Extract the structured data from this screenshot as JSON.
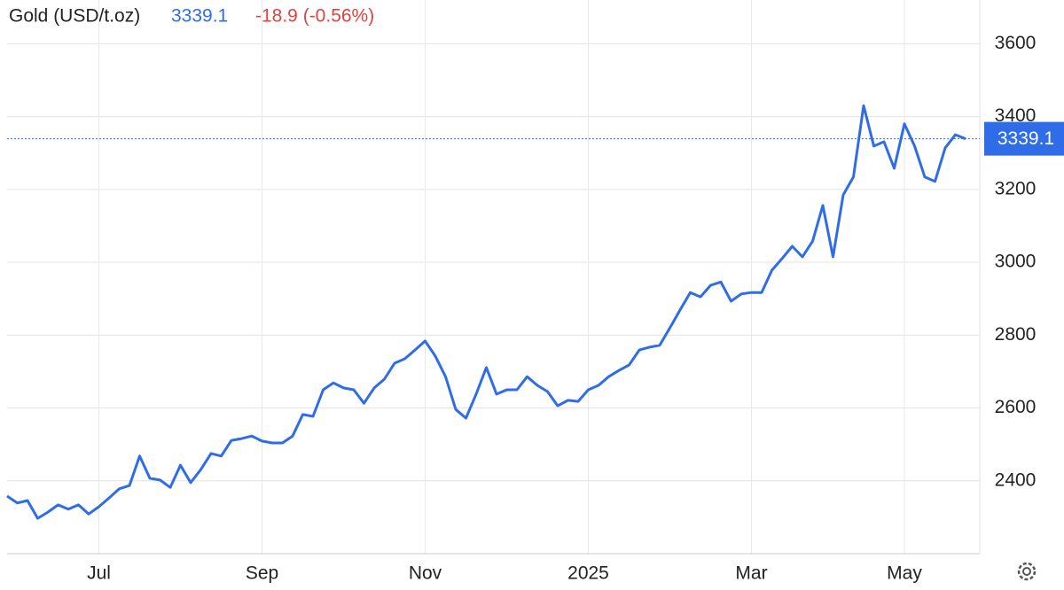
{
  "chart_data": {
    "type": "line",
    "title": "Gold (USD/t.oz)",
    "last_price": 3339.1,
    "change": "-18.9 (-0.56%)",
    "categories": [
      null,
      null,
      null,
      null,
      null,
      null,
      null,
      null,
      null,
      "Jul",
      null,
      null,
      null,
      null,
      null,
      null,
      null,
      null,
      null,
      null,
      null,
      null,
      null,
      null,
      null,
      "Sep",
      null,
      null,
      null,
      null,
      null,
      null,
      null,
      null,
      null,
      null,
      null,
      null,
      null,
      null,
      null,
      "Nov",
      null,
      null,
      null,
      null,
      null,
      null,
      null,
      null,
      null,
      null,
      null,
      null,
      null,
      null,
      null,
      "2025",
      null,
      null,
      null,
      null,
      null,
      null,
      null,
      null,
      null,
      null,
      null,
      null,
      null,
      null,
      null,
      "Mar",
      null,
      null,
      null,
      null,
      null,
      null,
      null,
      null,
      null,
      null,
      null,
      null,
      null,
      null,
      "May",
      null,
      null,
      null,
      null,
      null,
      null
    ],
    "series": [
      {
        "name": "Gold",
        "color": "#2f6de8",
        "values": [
          2358,
          2339,
          2346,
          2297,
          2314,
          2334,
          2322,
          2334,
          2309,
          2329,
          2353,
          2378,
          2387,
          2468,
          2407,
          2402,
          2382,
          2443,
          2395,
          2431,
          2475,
          2468,
          2511,
          2516,
          2523,
          2509,
          2504,
          2504,
          2523,
          2582,
          2577,
          2650,
          2669,
          2655,
          2650,
          2613,
          2655,
          2679,
          2723,
          2735,
          2759,
          2784,
          2742,
          2686,
          2596,
          2572,
          2638,
          2711,
          2638,
          2650,
          2650,
          2686,
          2662,
          2645,
          2606,
          2621,
          2618,
          2650,
          2662,
          2686,
          2703,
          2718,
          2759,
          2767,
          2772,
          2820,
          2869,
          2917,
          2905,
          2937,
          2946,
          2893,
          2913,
          2917,
          2917,
          2978,
          3010,
          3044,
          3015,
          3058,
          3156,
          3015,
          3185,
          3234,
          3430,
          3319,
          3331,
          3258,
          3380,
          3319,
          3234,
          3222,
          3314,
          3350,
          3339.1
        ]
      }
    ],
    "ylim": [
      2200,
      3720
    ],
    "yticks": [
      2400,
      2600,
      2800,
      3000,
      3200,
      3400,
      3600
    ],
    "grid": true
  }
}
